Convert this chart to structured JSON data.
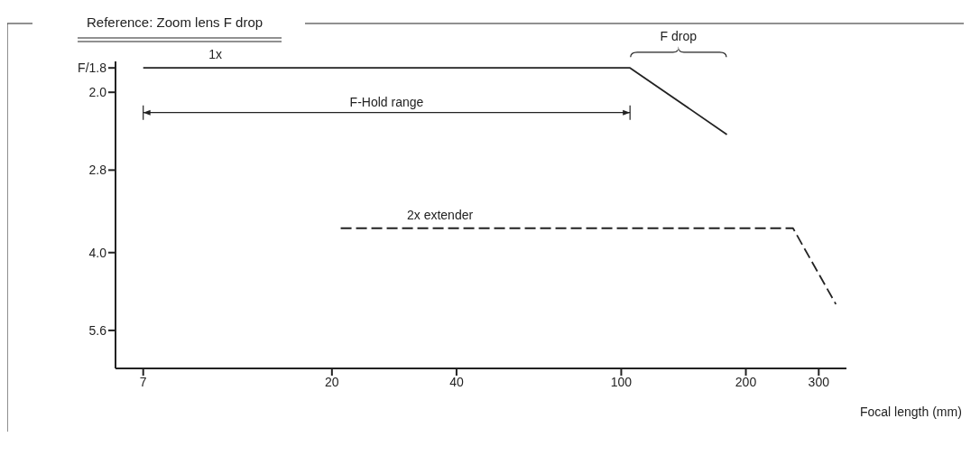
{
  "chart_data": {
    "type": "line",
    "title": "Reference: Zoom lens F drop",
    "xlabel": "Focal length (mm)",
    "log": "xy",
    "xlim": [
      6,
      350
    ],
    "xticks": [
      7,
      20,
      40,
      100,
      200,
      300
    ],
    "ylim": [
      6.6,
      1.75
    ],
    "yticks": [
      {
        "value": 1.8,
        "label": "F/1.8"
      },
      {
        "value": 2.0,
        "label": "2.0"
      },
      {
        "value": 2.8,
        "label": "2.8"
      },
      {
        "value": 4.0,
        "label": "4.0"
      },
      {
        "value": 5.6,
        "label": "5.6"
      }
    ],
    "grid": false,
    "legend": false,
    "marker": "none",
    "annotations": [
      "F-Hold range",
      "F drop"
    ],
    "series": [
      {
        "name": "1x",
        "color": "#222222",
        "line_style": "solid",
        "x": [
          7,
          105,
          180
        ],
        "values": [
          1.8,
          1.8,
          2.4
        ]
      },
      {
        "name": "2x extender",
        "color": "#222222",
        "line_style": "dashed",
        "x": [
          21,
          260,
          330
        ],
        "values": [
          3.6,
          3.6,
          5.0
        ]
      }
    ]
  }
}
